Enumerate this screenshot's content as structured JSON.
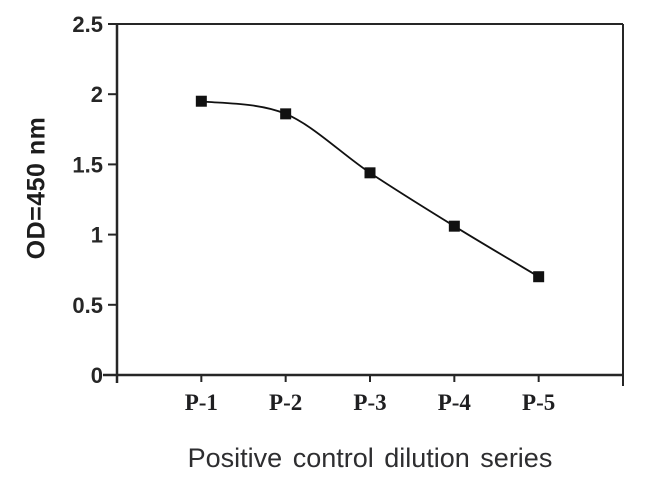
{
  "chart_data": {
    "type": "line",
    "title": "",
    "xlabel": "Positive control dilution series",
    "ylabel": "OD=450 nm",
    "categories": [
      "P-1",
      "P-2",
      "P-3",
      "P-4",
      "P-5"
    ],
    "values": [
      1.95,
      1.86,
      1.44,
      1.06,
      0.7
    ],
    "ylim": [
      0,
      2.5
    ],
    "ytick_values": [
      0,
      0.5,
      1,
      1.5,
      2,
      2.5
    ],
    "ytick_labels": [
      "0",
      "0.5",
      "1",
      "1.5",
      "2",
      "2.5"
    ],
    "marker": "filled-square",
    "line_style": "smooth",
    "legend": "none",
    "grid": false,
    "colors": {
      "line": "#111111",
      "marker": "#111111",
      "axis": "#262626",
      "text": "#262626",
      "background": "#ffffff"
    }
  }
}
